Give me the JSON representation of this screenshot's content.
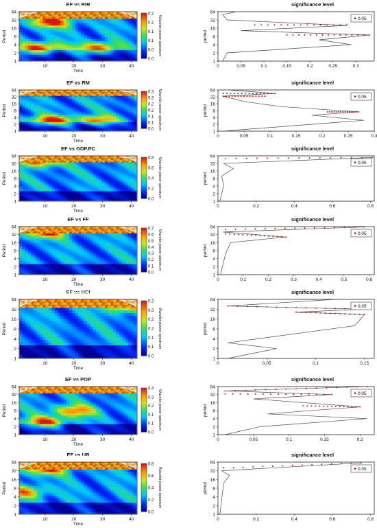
{
  "chart_data": [
    {
      "type": "heatmap",
      "title": "EF vs RIR",
      "xlabel": "Time",
      "ylabel": "Period",
      "xticks": [
        10,
        20,
        30,
        40
      ],
      "yticks": [
        1,
        2,
        4,
        8,
        16,
        32,
        64
      ],
      "xlim": [
        1,
        42
      ],
      "colorbar": {
        "label": "Wavelet power spectrum",
        "ticks": [
          "0.0",
          "0.0",
          "0.1",
          "0.1",
          "0.2",
          "0.2"
        ]
      },
      "hotspots": [
        {
          "t": 12,
          "p": 28,
          "v": 1
        },
        {
          "t": 8,
          "p": 3,
          "v": 1
        },
        {
          "t": 28,
          "p": 3,
          "v": 0.9
        }
      ]
    },
    {
      "type": "line",
      "title": "significance level",
      "ylabel": "period",
      "legend": "0.05",
      "legend_position": "top-right",
      "xticks": [
        "0",
        "0.05",
        "0.1",
        "0.15",
        "0.2",
        "0.25",
        "0.3"
      ],
      "xlim": [
        0,
        0.34
      ],
      "yticks": [
        1,
        2,
        4,
        8,
        16,
        32,
        64
      ],
      "ylim": [
        1,
        64
      ],
      "series": [
        {
          "name": "0.05",
          "x": [
            0.04,
            0.01,
            0.02,
            0.28,
            0.05,
            0.33,
            0.22,
            0.29,
            0.02,
            0.01
          ],
          "y": [
            64,
            50,
            32,
            20,
            13,
            9,
            6,
            4,
            2,
            1
          ]
        }
      ],
      "significant": [
        [
          0.08,
          21,
          0.28,
          21
        ],
        [
          0.15,
          9,
          0.33,
          9
        ]
      ]
    },
    {
      "type": "heatmap",
      "title": "EF vs RM",
      "xlabel": "Time",
      "ylabel": "Period",
      "xticks": [
        10,
        20,
        30,
        40
      ],
      "yticks": [
        1,
        2,
        4,
        8,
        16,
        32,
        64
      ],
      "xlim": [
        1,
        42
      ],
      "colorbar": {
        "label": "Wavelet power spectrum",
        "ticks": [
          "0.0",
          "0.1",
          "0.1",
          "0.2",
          "0.2",
          "0.3",
          "0.3"
        ]
      },
      "hotspots": [
        {
          "t": 12,
          "p": 3,
          "v": 1
        },
        {
          "t": 28,
          "p": 3,
          "v": 0.8
        }
      ]
    },
    {
      "type": "line",
      "title": "significance level",
      "ylabel": "period",
      "legend": "0.05",
      "legend_position": "top-right",
      "xticks": [
        "0",
        "0.05",
        "0.1",
        "0.15",
        "0.2",
        "0.25",
        "0.3"
      ],
      "xlim": [
        0,
        0.3
      ],
      "yticks": [
        1,
        2,
        4,
        8,
        16,
        32,
        64
      ],
      "ylim": [
        1,
        64
      ],
      "series": [
        {
          "name": "0.05",
          "x": [
            0.02,
            0.11,
            0.01,
            0.05,
            0.12,
            0.27,
            0.18,
            0.28,
            0.01
          ],
          "y": [
            64,
            45,
            34,
            20,
            12,
            7,
            5,
            3,
            1
          ]
        }
      ],
      "significant": [
        [
          0.01,
          45,
          0.11,
          45
        ],
        [
          0.01,
          34,
          0.09,
          34
        ],
        [
          0.21,
          7,
          0.27,
          7
        ]
      ]
    },
    {
      "type": "heatmap",
      "title": "EF vs GDP.PC",
      "xlabel": "Time",
      "ylabel": "Period",
      "xticks": [
        10,
        20,
        30,
        40
      ],
      "yticks": [
        1,
        2,
        4,
        8,
        16,
        32,
        64
      ],
      "xlim": [
        1,
        42
      ],
      "colorbar": {
        "label": "Wavelet power spectrum",
        "ticks": [
          "0.0",
          "0.2",
          "0.4",
          "0.6",
          "0.8"
        ]
      },
      "hotspots": [
        {
          "t": 8,
          "p": 40,
          "v": 1
        }
      ]
    },
    {
      "type": "line",
      "title": "significance level",
      "ylabel": "period",
      "legend": "0.05",
      "legend_position": "top-right",
      "xticks": [
        "0",
        "0.2",
        "0.4",
        "0.6",
        "0.8"
      ],
      "xlim": [
        0,
        0.82
      ],
      "yticks": [
        1,
        2,
        4,
        8,
        16,
        32,
        64
      ],
      "ylim": [
        1,
        64
      ],
      "series": [
        {
          "name": "0.05",
          "x": [
            0.81,
            0.03,
            0.08,
            0.02,
            0.03,
            0.01
          ],
          "y": [
            55,
            32,
            20,
            10,
            4,
            1
          ]
        }
      ],
      "significant": [
        [
          0.04,
          50,
          0.81,
          55
        ]
      ]
    },
    {
      "type": "heatmap",
      "title": "EF vs FF",
      "xlabel": "Time",
      "ylabel": "Period",
      "xticks": [
        10,
        20,
        30,
        40
      ],
      "yticks": [
        1,
        2,
        4,
        8,
        16,
        32,
        64
      ],
      "xlim": [
        1,
        42
      ],
      "colorbar": {
        "label": "Wavelet power spectrum",
        "ticks": [
          "0.0",
          "0.1",
          "0.2",
          "0.3",
          "0.4",
          "0.5",
          "0.6",
          "0.7"
        ]
      },
      "hotspots": [
        {
          "t": 10,
          "p": 40,
          "v": 1
        }
      ]
    },
    {
      "type": "line",
      "title": "significance level",
      "ylabel": "period",
      "legend": "0.05",
      "legend_position": "top-right",
      "xticks": [
        "0",
        "0.1",
        "0.2",
        "0.3",
        "0.4",
        "0.5",
        "0.6"
      ],
      "xlim": [
        0,
        0.62
      ],
      "yticks": [
        1,
        2,
        4,
        8,
        16,
        32,
        64
      ],
      "ylim": [
        1,
        64
      ],
      "series": [
        {
          "name": "0.05",
          "x": [
            0.58,
            0.02,
            0.27,
            0.05,
            0.03,
            0.01
          ],
          "y": [
            62,
            40,
            26,
            16,
            6,
            1
          ]
        }
      ],
      "significant": [
        [
          0.03,
          50,
          0.58,
          62
        ],
        [
          0.03,
          34,
          0.27,
          26
        ]
      ]
    },
    {
      "type": "heatmap",
      "title": "EF vs HCI",
      "xlabel": "Time",
      "ylabel": "Period",
      "xticks": [
        10,
        20,
        30,
        40
      ],
      "yticks": [
        1,
        2,
        4,
        8,
        16,
        32,
        64
      ],
      "xlim": [
        1,
        42
      ],
      "colorbar": {
        "label": "Wavelet power spectrum",
        "ticks": [
          "0.0",
          "0.1",
          "0.1",
          "0.2",
          "0.2",
          "0.3",
          "0.3"
        ]
      },
      "hotspots": [
        {
          "t": 38,
          "p": 45,
          "v": 1
        }
      ]
    },
    {
      "type": "line",
      "title": "significance level",
      "ylabel": "period",
      "legend": "0.05",
      "legend_position": "top-right",
      "xticks": [
        "0",
        "0.05",
        "0.1",
        "0.15"
      ],
      "xlim": [
        0,
        0.16
      ],
      "yticks": [
        1,
        2,
        4,
        8,
        16,
        32,
        64
      ],
      "ylim": [
        1,
        64
      ],
      "series": [
        {
          "name": "0.05",
          "x": [
            0.12,
            0.01,
            0.15,
            0.08,
            0.15,
            0.14,
            0.01,
            0.06,
            0.01
          ],
          "y": [
            64,
            40,
            32,
            26,
            22,
            10,
            3,
            2,
            1
          ]
        }
      ],
      "significant": [
        [
          0.01,
          40,
          0.15,
          32
        ],
        [
          0.08,
          26,
          0.15,
          22
        ]
      ]
    },
    {
      "type": "heatmap",
      "title": "EF vs POP",
      "xlabel": "Time",
      "ylabel": "Period",
      "xticks": [
        10,
        20,
        30,
        40
      ],
      "yticks": [
        1,
        2,
        4,
        8,
        16,
        32,
        64
      ],
      "xlim": [
        1,
        42
      ],
      "colorbar": {
        "label": "Wavelet power spectrum",
        "ticks": [
          "0.0",
          "0.1",
          "0.1",
          "0.2",
          "0.3",
          "0.4"
        ]
      },
      "hotspots": [
        {
          "t": 20,
          "p": 8,
          "v": 0.8
        },
        {
          "t": 10,
          "p": 3,
          "v": 0.9
        }
      ]
    },
    {
      "type": "line",
      "title": "significance level",
      "ylabel": "period",
      "legend": "0.05",
      "legend_position": "top-right",
      "xticks": [
        "0",
        "0.05",
        "0.1",
        "0.15",
        "0.2"
      ],
      "xlim": [
        0,
        0.22
      ],
      "yticks": [
        1,
        2,
        4,
        8,
        16,
        32,
        64
      ],
      "ylim": [
        1,
        64
      ],
      "series": [
        {
          "name": "0.05",
          "x": [
            0.21,
            0.01,
            0.16,
            0.05,
            0.2,
            0.07,
            0.21,
            0.06,
            0.01
          ],
          "y": [
            64,
            44,
            32,
            22,
            11,
            6,
            4,
            2,
            1
          ]
        }
      ],
      "significant": [
        [
          0.01,
          44,
          0.21,
          64
        ],
        [
          0.01,
          34,
          0.16,
          32
        ],
        [
          0.12,
          12,
          0.2,
          11
        ]
      ]
    },
    {
      "type": "heatmap",
      "title": "EF vs UR",
      "xlabel": "Time",
      "ylabel": "Period",
      "xticks": [
        10,
        20,
        30,
        40
      ],
      "yticks": [
        1,
        2,
        4,
        8,
        16,
        32,
        64
      ],
      "xlim": [
        1,
        42
      ],
      "colorbar": {
        "label": "Wavelet power spectrum",
        "ticks": [
          "0.0",
          "0.2",
          "0.4",
          "0.6",
          "0.8"
        ]
      },
      "hotspots": [
        {
          "t": 10,
          "p": 40,
          "v": 1
        },
        {
          "t": 3,
          "p": 6,
          "v": 0.7
        }
      ]
    },
    {
      "type": "line",
      "title": "significance level",
      "ylabel": "period",
      "legend": "0.05",
      "legend_position": "top-right",
      "xticks": [
        "0",
        "0.2",
        "0.4",
        "0.6",
        "0.8"
      ],
      "xlim": [
        0,
        0.82
      ],
      "yticks": [
        1,
        2,
        4,
        8,
        16,
        32,
        64
      ],
      "ylim": [
        1,
        64
      ],
      "series": [
        {
          "name": "0.05",
          "x": [
            0.75,
            0.02,
            0.06,
            0.03,
            0.01
          ],
          "y": [
            60,
            32,
            22,
            12,
            1
          ]
        }
      ],
      "significant": [
        [
          0.03,
          40,
          0.75,
          60
        ]
      ]
    }
  ]
}
